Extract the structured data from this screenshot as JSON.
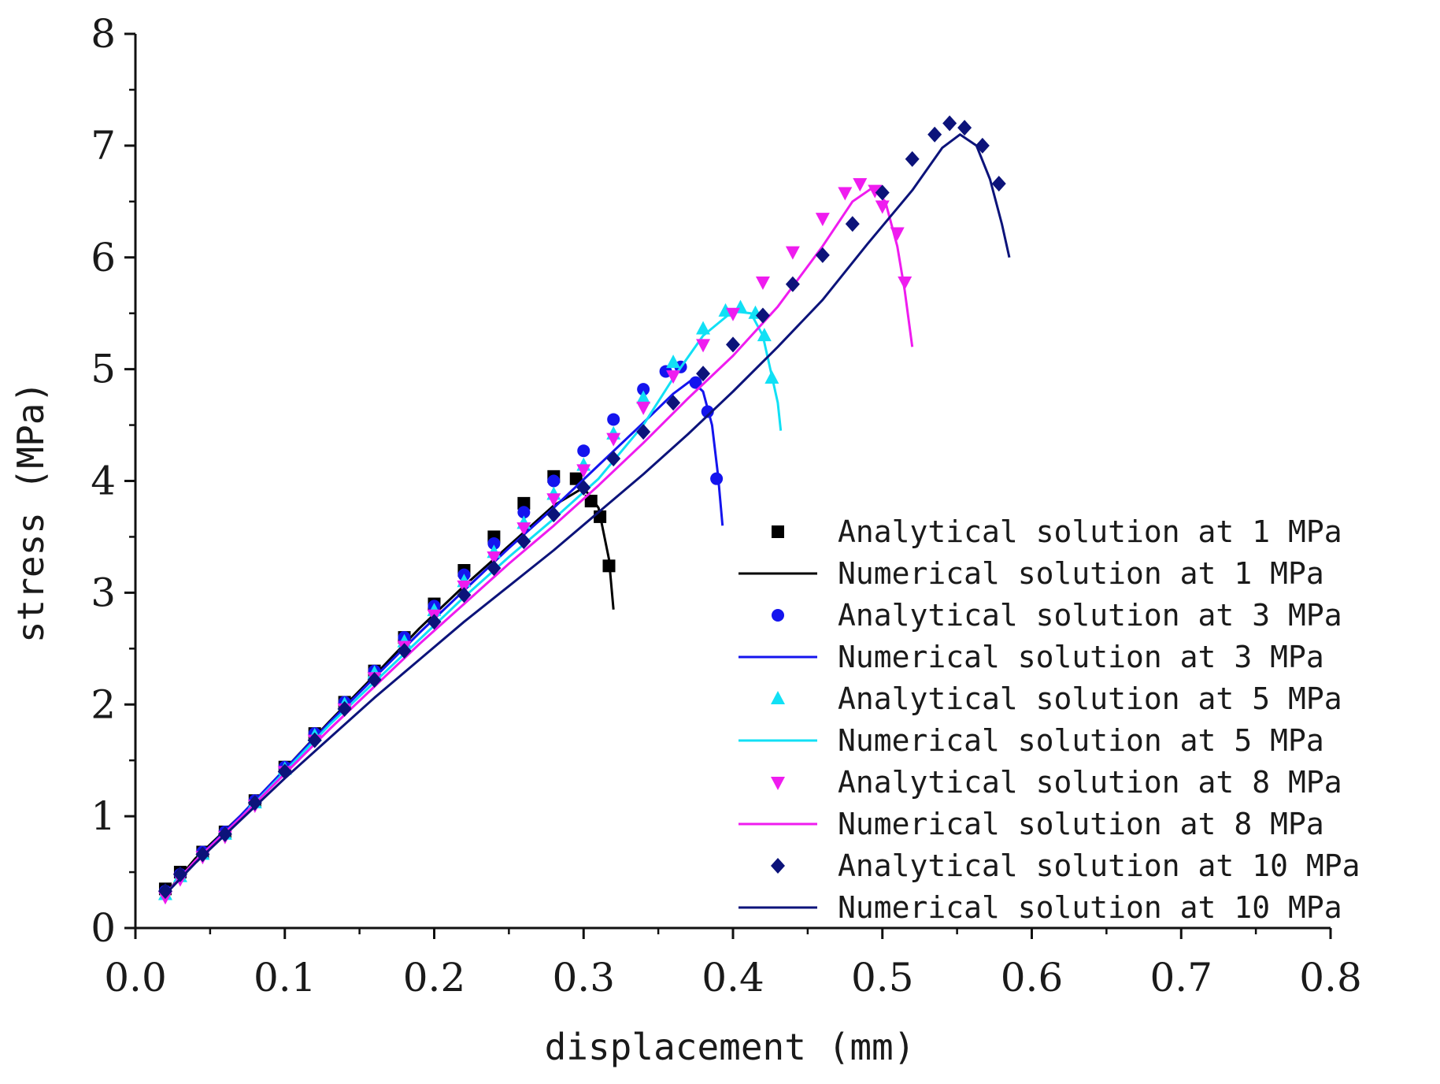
{
  "chart_data": {
    "type": "scatter",
    "title": "",
    "xlabel": "displacement (mm)",
    "ylabel": "stress (MPa)",
    "xlim": [
      0.0,
      0.8
    ],
    "ylim": [
      0,
      8
    ],
    "xticks": [
      "0.0",
      "0.1",
      "0.2",
      "0.3",
      "0.4",
      "0.5",
      "0.6",
      "0.7",
      "0.8"
    ],
    "yticks": [
      "0",
      "1",
      "2",
      "3",
      "4",
      "5",
      "6",
      "7",
      "8"
    ],
    "grid": false,
    "legend_position": "bottom-right",
    "series": [
      {
        "name": "Analytical solution at 1 MPa",
        "kind": "markers",
        "marker": "square",
        "color": "#000000",
        "points": [
          [
            0.02,
            0.35
          ],
          [
            0.03,
            0.5
          ],
          [
            0.045,
            0.68
          ],
          [
            0.06,
            0.86
          ],
          [
            0.08,
            1.14
          ],
          [
            0.1,
            1.44
          ],
          [
            0.12,
            1.74
          ],
          [
            0.14,
            2.02
          ],
          [
            0.16,
            2.3
          ],
          [
            0.18,
            2.6
          ],
          [
            0.2,
            2.9
          ],
          [
            0.22,
            3.2
          ],
          [
            0.24,
            3.5
          ],
          [
            0.26,
            3.8
          ],
          [
            0.28,
            4.04
          ],
          [
            0.295,
            4.02
          ],
          [
            0.305,
            3.82
          ],
          [
            0.311,
            3.68
          ],
          [
            0.317,
            3.24
          ]
        ]
      },
      {
        "name": "Numerical solution at 1 MPa",
        "kind": "line",
        "color": "#000000",
        "points": [
          [
            0.02,
            0.3
          ],
          [
            0.04,
            0.62
          ],
          [
            0.07,
            1.0
          ],
          [
            0.1,
            1.42
          ],
          [
            0.13,
            1.85
          ],
          [
            0.16,
            2.26
          ],
          [
            0.19,
            2.68
          ],
          [
            0.22,
            3.06
          ],
          [
            0.25,
            3.42
          ],
          [
            0.28,
            3.78
          ],
          [
            0.3,
            3.94
          ],
          [
            0.31,
            3.76
          ],
          [
            0.317,
            3.3
          ],
          [
            0.32,
            2.85
          ]
        ]
      },
      {
        "name": "Analytical solution at 3 MPa",
        "kind": "markers",
        "marker": "circle",
        "color": "#1414ee",
        "points": [
          [
            0.02,
            0.33
          ],
          [
            0.03,
            0.48
          ],
          [
            0.045,
            0.68
          ],
          [
            0.06,
            0.86
          ],
          [
            0.08,
            1.14
          ],
          [
            0.1,
            1.44
          ],
          [
            0.12,
            1.74
          ],
          [
            0.14,
            2.02
          ],
          [
            0.16,
            2.3
          ],
          [
            0.18,
            2.6
          ],
          [
            0.2,
            2.88
          ],
          [
            0.22,
            3.16
          ],
          [
            0.24,
            3.44
          ],
          [
            0.26,
            3.72
          ],
          [
            0.28,
            4.0
          ],
          [
            0.3,
            4.27
          ],
          [
            0.32,
            4.55
          ],
          [
            0.34,
            4.82
          ],
          [
            0.355,
            4.98
          ],
          [
            0.365,
            5.02
          ],
          [
            0.375,
            4.88
          ],
          [
            0.383,
            4.62
          ],
          [
            0.389,
            4.02
          ]
        ]
      },
      {
        "name": "Numerical solution at 3 MPa",
        "kind": "line",
        "color": "#1414ee",
        "points": [
          [
            0.02,
            0.3
          ],
          [
            0.04,
            0.6
          ],
          [
            0.07,
            1.0
          ],
          [
            0.1,
            1.42
          ],
          [
            0.13,
            1.84
          ],
          [
            0.16,
            2.24
          ],
          [
            0.19,
            2.64
          ],
          [
            0.22,
            3.02
          ],
          [
            0.25,
            3.4
          ],
          [
            0.28,
            3.76
          ],
          [
            0.31,
            4.14
          ],
          [
            0.34,
            4.52
          ],
          [
            0.36,
            4.78
          ],
          [
            0.372,
            4.9
          ],
          [
            0.38,
            4.8
          ],
          [
            0.386,
            4.5
          ],
          [
            0.39,
            4.05
          ],
          [
            0.393,
            3.6
          ]
        ]
      },
      {
        "name": "Analytical solution at 5 MPa",
        "kind": "markers",
        "marker": "triangle-up",
        "color": "#11e0f5",
        "points": [
          [
            0.02,
            0.3
          ],
          [
            0.03,
            0.46
          ],
          [
            0.045,
            0.66
          ],
          [
            0.06,
            0.84
          ],
          [
            0.08,
            1.12
          ],
          [
            0.1,
            1.42
          ],
          [
            0.12,
            1.72
          ],
          [
            0.14,
            2.0
          ],
          [
            0.16,
            2.28
          ],
          [
            0.18,
            2.56
          ],
          [
            0.2,
            2.84
          ],
          [
            0.22,
            3.1
          ],
          [
            0.24,
            3.36
          ],
          [
            0.26,
            3.62
          ],
          [
            0.28,
            3.88
          ],
          [
            0.3,
            4.14
          ],
          [
            0.32,
            4.42
          ],
          [
            0.34,
            4.74
          ],
          [
            0.36,
            5.06
          ],
          [
            0.38,
            5.36
          ],
          [
            0.395,
            5.52
          ],
          [
            0.405,
            5.55
          ],
          [
            0.415,
            5.5
          ],
          [
            0.421,
            5.3
          ],
          [
            0.426,
            4.92
          ]
        ]
      },
      {
        "name": "Numerical solution at 5 MPa",
        "kind": "line",
        "color": "#11e0f5",
        "points": [
          [
            0.02,
            0.3
          ],
          [
            0.04,
            0.6
          ],
          [
            0.07,
            0.98
          ],
          [
            0.1,
            1.4
          ],
          [
            0.13,
            1.82
          ],
          [
            0.16,
            2.2
          ],
          [
            0.19,
            2.58
          ],
          [
            0.22,
            2.96
          ],
          [
            0.25,
            3.32
          ],
          [
            0.28,
            3.66
          ],
          [
            0.31,
            4.02
          ],
          [
            0.34,
            4.5
          ],
          [
            0.36,
            4.92
          ],
          [
            0.38,
            5.3
          ],
          [
            0.4,
            5.52
          ],
          [
            0.412,
            5.5
          ],
          [
            0.42,
            5.3
          ],
          [
            0.425,
            5.0
          ],
          [
            0.43,
            4.7
          ],
          [
            0.432,
            4.45
          ]
        ]
      },
      {
        "name": "Analytical solution at 8 MPa",
        "kind": "markers",
        "marker": "triangle-down",
        "color": "#ef1cef",
        "points": [
          [
            0.02,
            0.28
          ],
          [
            0.03,
            0.44
          ],
          [
            0.045,
            0.64
          ],
          [
            0.06,
            0.82
          ],
          [
            0.08,
            1.1
          ],
          [
            0.1,
            1.4
          ],
          [
            0.12,
            1.68
          ],
          [
            0.14,
            1.96
          ],
          [
            0.16,
            2.24
          ],
          [
            0.18,
            2.52
          ],
          [
            0.2,
            2.8
          ],
          [
            0.22,
            3.06
          ],
          [
            0.24,
            3.32
          ],
          [
            0.26,
            3.58
          ],
          [
            0.28,
            3.84
          ],
          [
            0.3,
            4.1
          ],
          [
            0.32,
            4.38
          ],
          [
            0.34,
            4.66
          ],
          [
            0.36,
            4.94
          ],
          [
            0.38,
            5.22
          ],
          [
            0.4,
            5.5
          ],
          [
            0.42,
            5.78
          ],
          [
            0.44,
            6.05
          ],
          [
            0.46,
            6.35
          ],
          [
            0.475,
            6.58
          ],
          [
            0.485,
            6.66
          ],
          [
            0.495,
            6.6
          ],
          [
            0.5,
            6.46
          ],
          [
            0.51,
            6.22
          ],
          [
            0.515,
            5.78
          ]
        ]
      },
      {
        "name": "Numerical solution at 8 MPa",
        "kind": "line",
        "color": "#ef1cef",
        "points": [
          [
            0.02,
            0.3
          ],
          [
            0.04,
            0.6
          ],
          [
            0.07,
            0.98
          ],
          [
            0.1,
            1.38
          ],
          [
            0.13,
            1.78
          ],
          [
            0.16,
            2.16
          ],
          [
            0.19,
            2.54
          ],
          [
            0.22,
            2.9
          ],
          [
            0.25,
            3.26
          ],
          [
            0.28,
            3.6
          ],
          [
            0.31,
            3.96
          ],
          [
            0.34,
            4.34
          ],
          [
            0.37,
            4.74
          ],
          [
            0.4,
            5.12
          ],
          [
            0.43,
            5.56
          ],
          [
            0.46,
            6.1
          ],
          [
            0.48,
            6.5
          ],
          [
            0.493,
            6.62
          ],
          [
            0.502,
            6.5
          ],
          [
            0.51,
            6.1
          ],
          [
            0.515,
            5.7
          ],
          [
            0.52,
            5.2
          ]
        ]
      },
      {
        "name": "Analytical solution at 10 MPa",
        "kind": "markers",
        "marker": "diamond",
        "color": "#0c137a",
        "points": [
          [
            0.02,
            0.33
          ],
          [
            0.03,
            0.48
          ],
          [
            0.045,
            0.66
          ],
          [
            0.06,
            0.84
          ],
          [
            0.08,
            1.12
          ],
          [
            0.1,
            1.4
          ],
          [
            0.12,
            1.68
          ],
          [
            0.14,
            1.96
          ],
          [
            0.16,
            2.22
          ],
          [
            0.18,
            2.48
          ],
          [
            0.2,
            2.74
          ],
          [
            0.22,
            2.98
          ],
          [
            0.24,
            3.22
          ],
          [
            0.26,
            3.46
          ],
          [
            0.28,
            3.7
          ],
          [
            0.3,
            3.94
          ],
          [
            0.32,
            4.2
          ],
          [
            0.34,
            4.44
          ],
          [
            0.36,
            4.7
          ],
          [
            0.38,
            4.96
          ],
          [
            0.4,
            5.22
          ],
          [
            0.42,
            5.48
          ],
          [
            0.44,
            5.76
          ],
          [
            0.46,
            6.02
          ],
          [
            0.48,
            6.3
          ],
          [
            0.5,
            6.58
          ],
          [
            0.52,
            6.88
          ],
          [
            0.535,
            7.1
          ],
          [
            0.545,
            7.2
          ],
          [
            0.555,
            7.16
          ],
          [
            0.567,
            7.0
          ],
          [
            0.578,
            6.66
          ]
        ]
      },
      {
        "name": "Numerical solution at 10 MPa",
        "kind": "line",
        "color": "#0c137a",
        "points": [
          [
            0.02,
            0.3
          ],
          [
            0.04,
            0.58
          ],
          [
            0.07,
            0.96
          ],
          [
            0.1,
            1.34
          ],
          [
            0.13,
            1.7
          ],
          [
            0.16,
            2.06
          ],
          [
            0.19,
            2.4
          ],
          [
            0.22,
            2.74
          ],
          [
            0.25,
            3.06
          ],
          [
            0.28,
            3.38
          ],
          [
            0.31,
            3.72
          ],
          [
            0.34,
            4.06
          ],
          [
            0.37,
            4.42
          ],
          [
            0.4,
            4.8
          ],
          [
            0.43,
            5.2
          ],
          [
            0.46,
            5.62
          ],
          [
            0.49,
            6.12
          ],
          [
            0.52,
            6.6
          ],
          [
            0.54,
            6.98
          ],
          [
            0.552,
            7.1
          ],
          [
            0.563,
            7.0
          ],
          [
            0.572,
            6.7
          ],
          [
            0.58,
            6.3
          ],
          [
            0.585,
            6.0
          ]
        ]
      }
    ]
  }
}
